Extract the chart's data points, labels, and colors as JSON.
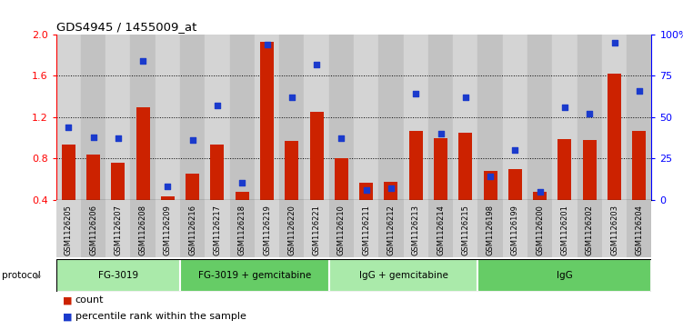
{
  "title": "GDS4945 / 1455009_at",
  "samples": [
    "GSM1126205",
    "GSM1126206",
    "GSM1126207",
    "GSM1126208",
    "GSM1126209",
    "GSM1126216",
    "GSM1126217",
    "GSM1126218",
    "GSM1126219",
    "GSM1126220",
    "GSM1126221",
    "GSM1126210",
    "GSM1126211",
    "GSM1126212",
    "GSM1126213",
    "GSM1126214",
    "GSM1126215",
    "GSM1126198",
    "GSM1126199",
    "GSM1126200",
    "GSM1126201",
    "GSM1126202",
    "GSM1126203",
    "GSM1126204"
  ],
  "count": [
    0.93,
    0.84,
    0.76,
    1.3,
    0.43,
    0.65,
    0.93,
    0.48,
    1.93,
    0.97,
    1.25,
    0.8,
    0.56,
    0.57,
    1.07,
    1.0,
    1.05,
    0.68,
    0.7,
    0.48,
    0.99,
    0.98,
    1.62,
    1.07
  ],
  "percentile": [
    44,
    38,
    37,
    84,
    8,
    36,
    57,
    10,
    94,
    62,
    82,
    37,
    6,
    7,
    64,
    40,
    62,
    14,
    30,
    5,
    56,
    52,
    95,
    66
  ],
  "protocols": [
    {
      "label": "FG-3019",
      "start": 0,
      "end": 4
    },
    {
      "label": "FG-3019 + gemcitabine",
      "start": 5,
      "end": 10
    },
    {
      "label": "IgG + gemcitabine",
      "start": 11,
      "end": 16
    },
    {
      "label": "IgG",
      "start": 17,
      "end": 23
    }
  ],
  "bar_color": "#cc2200",
  "dot_color": "#1a3acc",
  "ylim_left": [
    0.4,
    2.0
  ],
  "ylim_right": [
    0,
    100
  ],
  "yticks_left": [
    0.4,
    0.8,
    1.2,
    1.6,
    2.0
  ],
  "yticks_right": [
    0,
    25,
    50,
    75,
    100
  ],
  "ytick_labels_right": [
    "0",
    "25",
    "50",
    "75",
    "100%"
  ],
  "col_bg_odd": "#d4d4d4",
  "col_bg_even": "#c2c2c2",
  "protocol_bg_light": "#aaeaaa",
  "protocol_bg_dark": "#66cc66",
  "bg_white": "#ffffff"
}
